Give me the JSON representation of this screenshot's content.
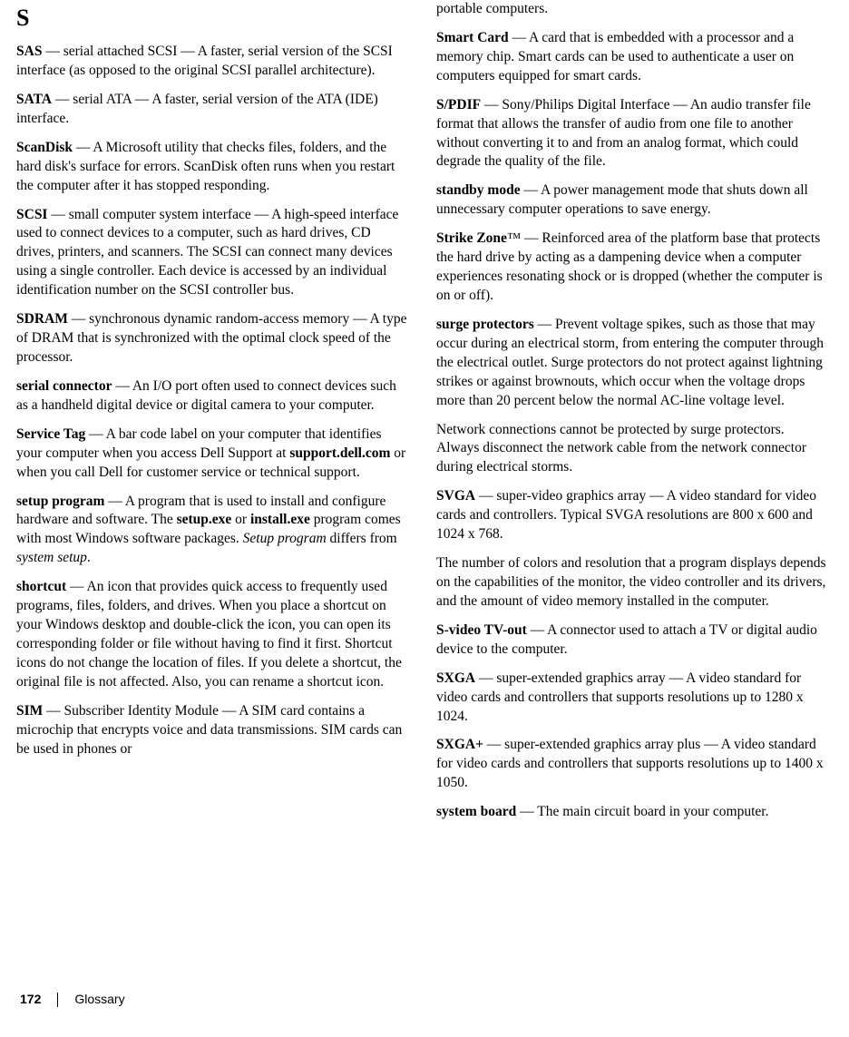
{
  "col1": {
    "sectionLetter": "S",
    "entries": [
      {
        "term": "SAS",
        "rest": " — serial attached SCSI — A faster, serial version of the SCSI interface (as opposed to the original SCSI parallel architecture)."
      },
      {
        "term": "SATA",
        "rest": " — serial ATA — A faster, serial version of the ATA (IDE) interface."
      },
      {
        "term": "ScanDisk",
        "rest": " — A Microsoft utility that checks files, folders, and the hard disk's surface for errors. ScanDisk often runs when you restart the computer after it has stopped responding."
      },
      {
        "term": "SCSI",
        "rest": " — small computer system interface — A high-speed interface used to connect devices to a computer, such as hard drives, CD drives, printers, and scanners. The SCSI can connect many devices using a single controller. Each device is accessed by an individual identification number on the SCSI controller bus."
      },
      {
        "term": "SDRAM",
        "rest": " — synchronous dynamic random-access memory — A type of DRAM that is synchronized with the optimal clock speed of the processor."
      },
      {
        "term": "serial connector",
        "rest": " — An I/O port often used to connect devices such as a handheld digital device or digital camera to your computer."
      },
      {
        "term": "Service Tag",
        "rest1": " — A bar code label on your computer that identifies your computer when you access Dell Support at ",
        "bold2": "support.dell.com",
        "rest2": " or when you call Dell for customer service or technical support."
      },
      {
        "term": "setup program",
        "rest1": " — A program that is used to install and configure hardware and software. The ",
        "bold2": "setup.exe",
        "rest2": " or ",
        "bold3": "install.exe",
        "rest3": " program comes with most Windows software packages. ",
        "ital1": "Setup program",
        "rest4": " differs from ",
        "ital2": "system setup",
        "rest5": "."
      },
      {
        "term": "shortcut",
        "rest": " — An icon that provides quick access to frequently used programs, files, folders, and drives. When you place a shortcut on your Windows desktop and double-click the icon, you can open its corresponding folder or file without having to find it first. Shortcut icons do not change the location of files. If you delete a shortcut, the original file is not affected. Also, you can rename a shortcut icon."
      },
      {
        "term": "SIM",
        "rest": " — Subscriber Identity Module — A SIM card contains a microchip that encrypts voice and data transmissions. SIM cards can be used in phones or"
      }
    ]
  },
  "col2": {
    "continuation": "portable computers.",
    "entries": [
      {
        "term": "Smart Card",
        "rest": " — A card that is embedded with a processor and a memory chip. Smart cards can be used to authenticate a user on computers equipped for smart cards."
      },
      {
        "term": "S/PDIF",
        "rest": " — Sony/Philips Digital Interface — An audio transfer file format that allows the transfer of audio from one file to another without converting it to and from an analog format, which could degrade the quality of the file."
      },
      {
        "term": "standby mode",
        "rest": " — A power management mode that shuts down all unnecessary computer operations to save energy."
      },
      {
        "term": "Strike Zone",
        "tm": "™",
        "rest": " — Reinforced area of the platform base that protects the hard drive by acting as a dampening device when a computer experiences resonating shock or is dropped (whether the computer is on or off)."
      },
      {
        "term": "surge protectors",
        "rest": " — Prevent voltage spikes, such as those that may occur during an electrical storm, from entering the computer through the electrical outlet. Surge protectors do not protect against lightning strikes or against brownouts, which occur when the voltage drops more than 20 percent below the normal AC-line voltage level."
      },
      {
        "plain": "Network connections cannot be protected by surge protectors. Always disconnect the network cable from the network connector during electrical storms."
      },
      {
        "term": "SVGA",
        "rest": " — super-video graphics array — A video standard for video cards and controllers. Typical SVGA resolutions are 800 x 600 and 1024 x 768."
      },
      {
        "plain": "The number of colors and resolution that a program displays depends on the capabilities of the monitor, the video controller and its drivers, and the amount of video memory installed in the computer."
      },
      {
        "term": "S-video TV-out",
        "rest": " — A connector used to attach a TV or digital audio device to the computer."
      },
      {
        "term": "SXGA",
        "rest": " — super-extended graphics array — A video standard for video cards and controllers that supports resolutions up to 1280 x 1024."
      },
      {
        "term": "SXGA+",
        "rest": " — super-extended graphics array plus — A video standard for video cards and controllers that supports resolutions up to 1400 x 1050."
      },
      {
        "term": "system board",
        "rest": " — The main circuit board in your computer."
      }
    ]
  },
  "footer": {
    "pageNumber": "172",
    "section": "Glossary"
  }
}
